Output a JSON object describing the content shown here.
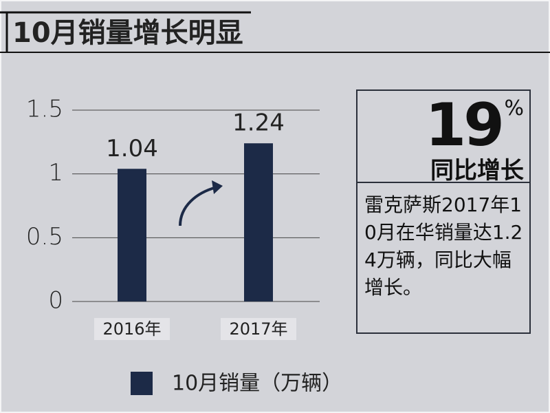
{
  "chart_data": {
    "type": "bar",
    "title": "10月销量增长明显",
    "categories": [
      "2016年",
      "2017年"
    ],
    "series": [
      {
        "name": "10月销量（万辆）",
        "color": "#1c2a47",
        "values": [
          1.04,
          1.24
        ]
      }
    ],
    "ylim": [
      0,
      1.5
    ],
    "yticks": [
      0,
      0.5,
      1,
      1.5
    ],
    "grid": true,
    "legend": "bottom",
    "callout": {
      "value": 19,
      "unit": "%",
      "label": "同比增长",
      "text": "雷克萨斯2017年10月在华销量达1.24万辆，同比大幅增长。"
    }
  }
}
